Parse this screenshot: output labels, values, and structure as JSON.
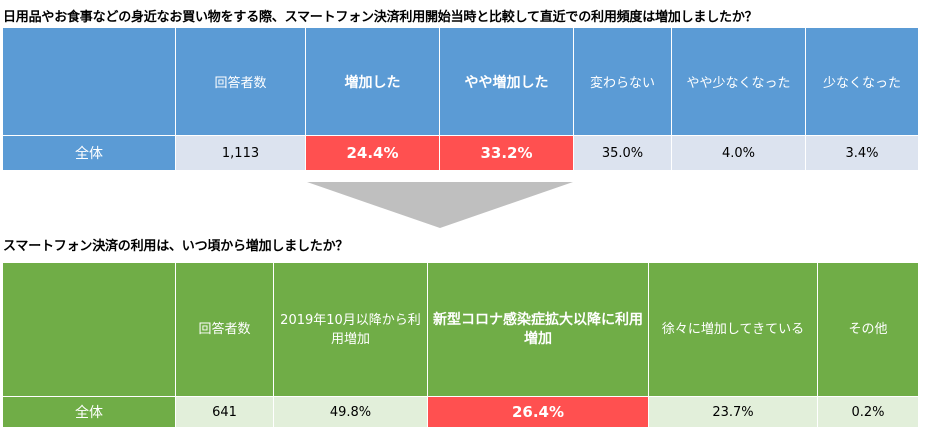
{
  "q1": {
    "title": "日用品やお食事などの身近なお買い物をする際、スマートフォン決済利用開始当時と比較して直近での利用頻度は増加しましたか？",
    "headers": [
      "",
      "回答者数",
      "増加した",
      "やや増加した",
      "変わらない",
      "やや少なくなった",
      "少なくなった"
    ],
    "row": [
      "全体",
      "1,113",
      "24.4%",
      "33.2%",
      "35.0%",
      "4.0%",
      "3.4%"
    ]
  },
  "q2": {
    "title": "スマートフォン決済の利用は、いつ頃から増加しましたか？",
    "headers": [
      "",
      "回答者数",
      "2019年10月以降から利用増加",
      "新型コロナ感染症拡大以降に利用増加",
      "徐々に増加してきている",
      "その他"
    ],
    "row": [
      "全体",
      "641",
      "49.8%",
      "26.4%",
      "23.7%",
      "0.2%"
    ]
  },
  "colors": {
    "blue_header": "#5b9bd5",
    "blue_row": "#dce3ef",
    "green_header": "#70ad47",
    "green_row": "#e2efda",
    "highlight": "#ff5050",
    "arrow": "#bfbfbf"
  }
}
